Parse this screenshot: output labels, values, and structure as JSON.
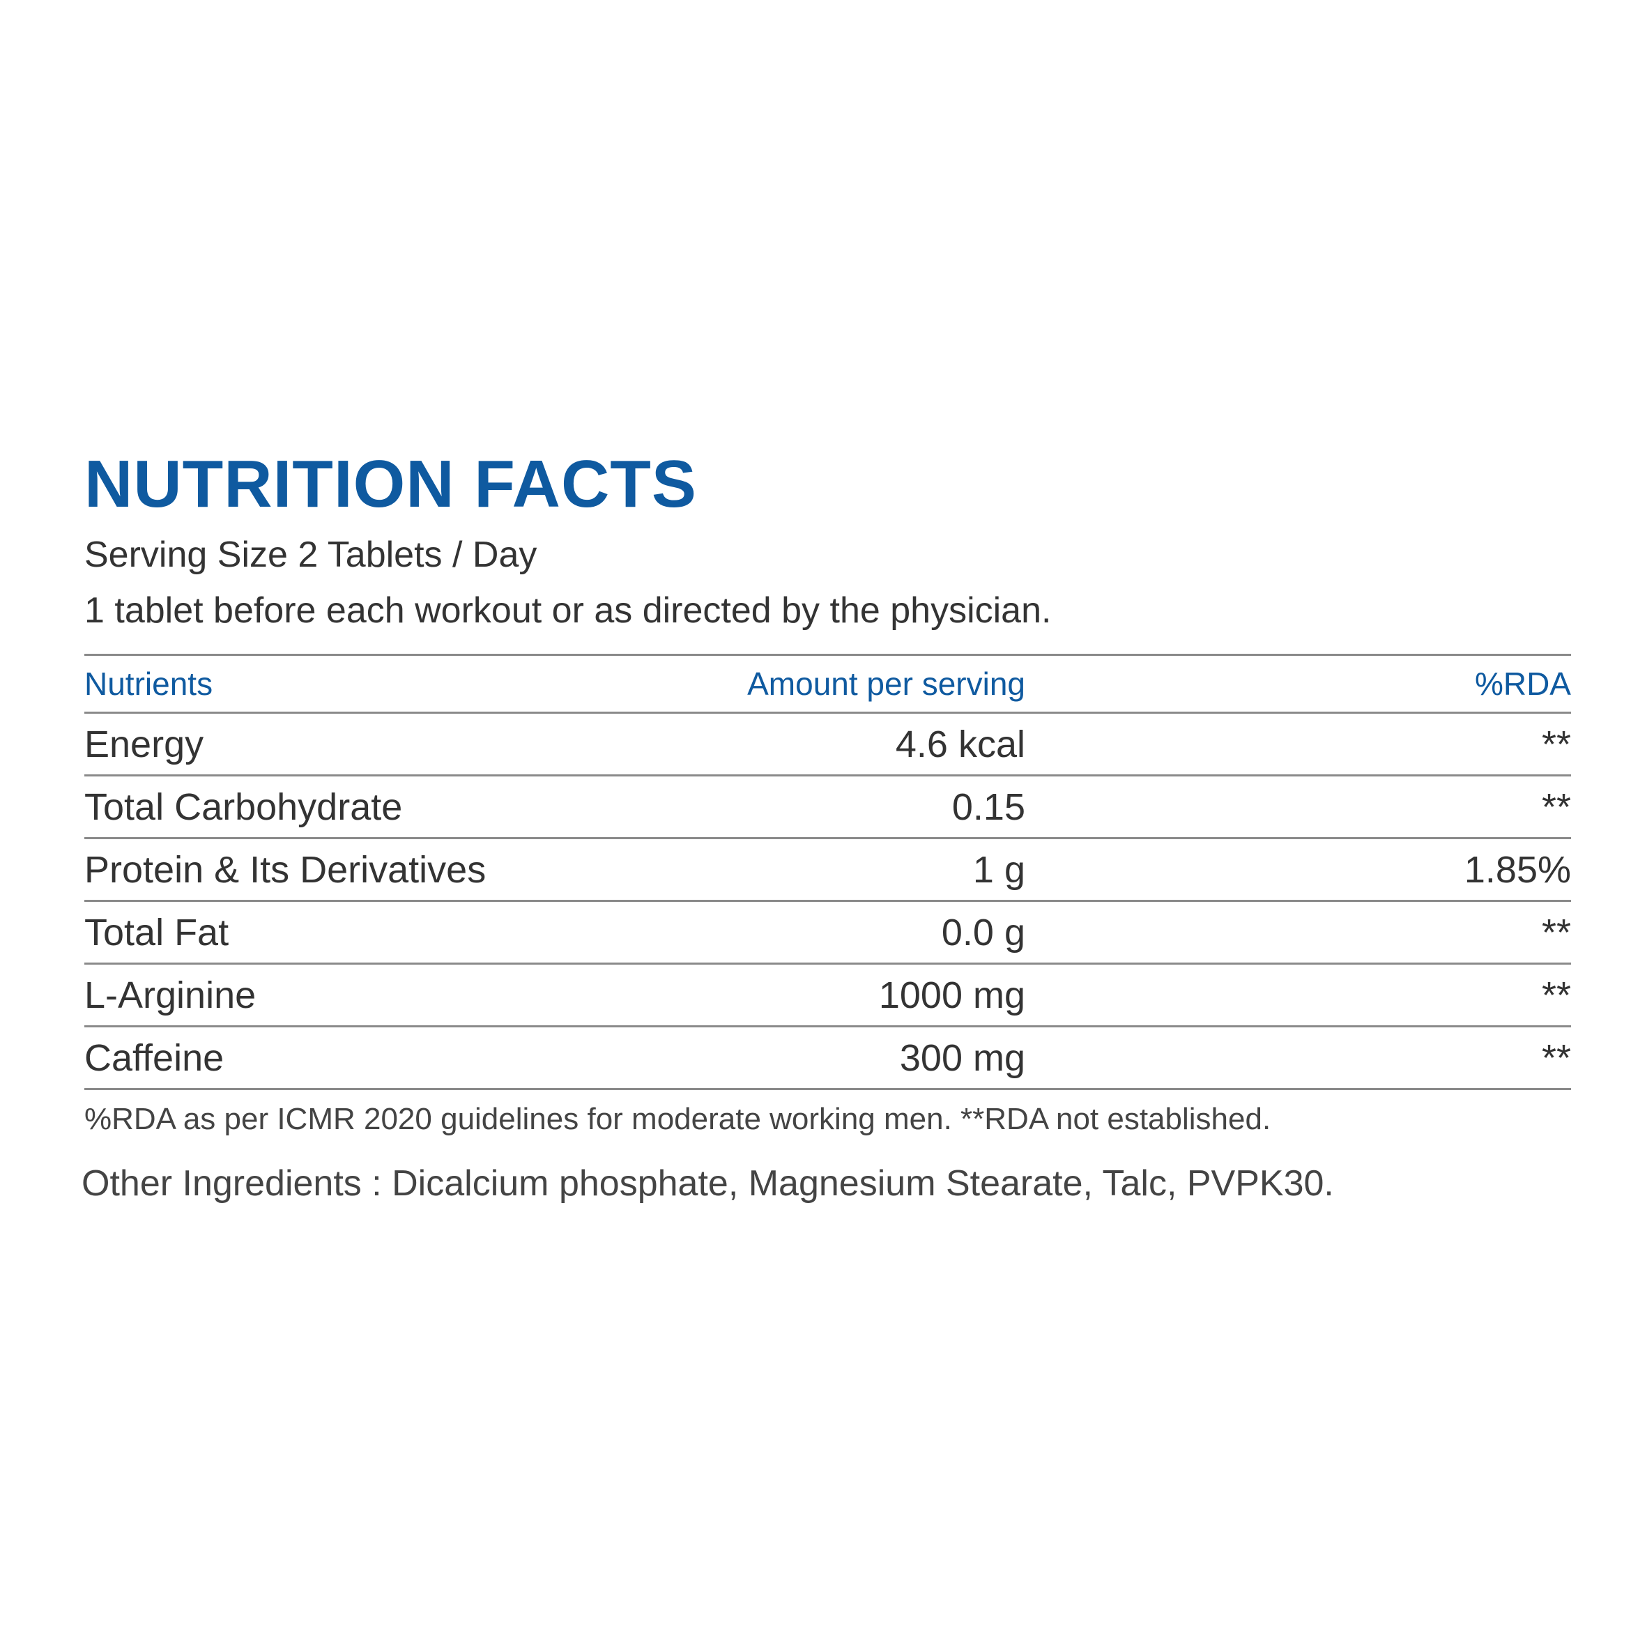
{
  "header": {
    "title": "NUTRITION FACTS",
    "serving_size": "Serving Size 2 Tablets / Day",
    "directions": "1 tablet before each workout or as directed by the physician."
  },
  "table": {
    "columns": [
      "Nutrients",
      "Amount per serving",
      "%RDA"
    ],
    "rows": [
      {
        "nutrient": "Energy",
        "amount": "4.6 kcal",
        "rda": "**"
      },
      {
        "nutrient": "Total Carbohydrate",
        "amount": "0.15",
        "rda": "**"
      },
      {
        "nutrient": "Protein & Its Derivatives",
        "amount": "1 g",
        "rda": "1.85%"
      },
      {
        "nutrient": "Total Fat",
        "amount": "0.0 g",
        "rda": "**"
      },
      {
        "nutrient": "L-Arginine",
        "amount": "1000 mg",
        "rda": "**"
      },
      {
        "nutrient": "Caffeine",
        "amount": "300 mg",
        "rda": "**"
      }
    ]
  },
  "footnote": "%RDA as per ICMR 2020 guidelines for moderate working men. **RDA not established.",
  "other_ingredients": "Other Ingredients : Dicalcium phosphate, Magnesium Stearate, Talc, PVPK30.",
  "colors": {
    "accent": "#0f5aa0",
    "text": "#333333",
    "rule": "#8a8a8a"
  }
}
